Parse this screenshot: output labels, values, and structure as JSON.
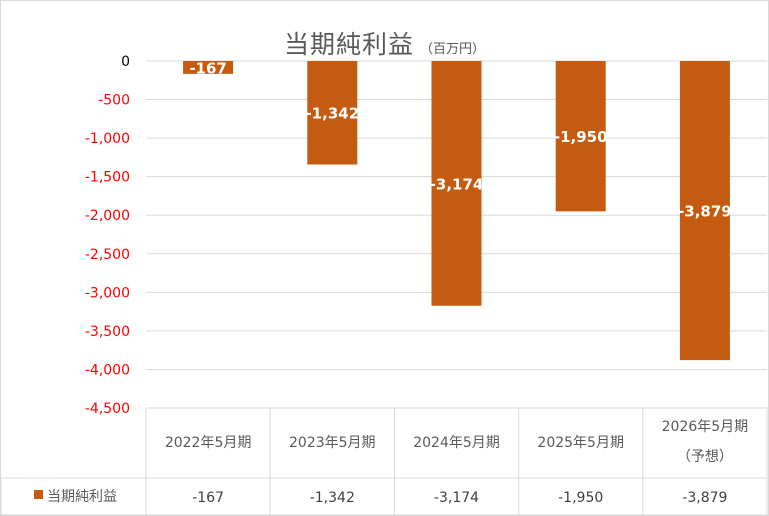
{
  "chart_data": {
    "type": "bar",
    "title": "当期純利益",
    "unit": "（百万円）",
    "categories": [
      {
        "line1": "2022年5月期",
        "line2": ""
      },
      {
        "line1": "2023年5月期",
        "line2": ""
      },
      {
        "line1": "2024年5月期",
        "line2": ""
      },
      {
        "line1": "2025年5月期",
        "line2": ""
      },
      {
        "line1": "2026年5月期",
        "line2": "（予想）"
      }
    ],
    "series": [
      {
        "name": "当期純利益",
        "values": [
          -167,
          -1342,
          -3174,
          -1950,
          -3879
        ],
        "labels": [
          "-167",
          "-1,342",
          "-3,174",
          "-1,950",
          "-3,879"
        ]
      }
    ],
    "ylim": [
      -4500,
      0
    ],
    "yticks": [
      0,
      -500,
      -1000,
      -1500,
      -2000,
      -2500,
      -3000,
      -3500,
      -4000,
      -4500
    ],
    "ytick_labels": [
      "0",
      "-500",
      "-1,000",
      "-1,500",
      "-2,000",
      "-2,500",
      "-3,000",
      "-3,500",
      "-4,000",
      "-4,500"
    ],
    "grid": true,
    "data_table": true,
    "colors": {
      "bar": "#c55a11",
      "tick_positive": "#000000",
      "tick_negative": "#ff0000",
      "grid": "#d9d9d9",
      "title": "#595959",
      "data_label": "#ffffff"
    }
  }
}
